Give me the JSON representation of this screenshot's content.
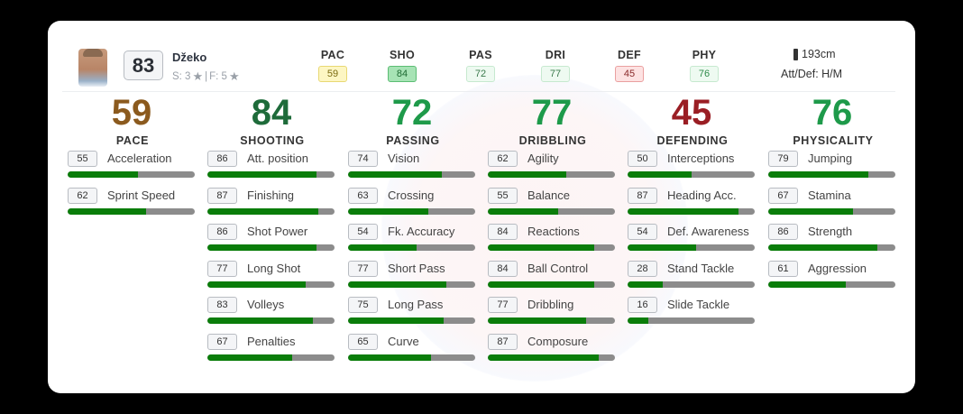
{
  "player": {
    "name": "Džeko",
    "overall": "83",
    "skill_moves_label": "S: 3",
    "weak_foot_label": "F: 5",
    "skills_separator": "|",
    "star_icon": "★",
    "height": "193cm",
    "work_rates": "Att/Def: H/M"
  },
  "summary": [
    {
      "label": "PAC",
      "value": "59",
      "bg": "#fdf6c3",
      "border": "#e8d873",
      "color": "#7a6a10"
    },
    {
      "label": "SHO",
      "value": "84",
      "bg": "#a7e3b5",
      "border": "#5bbd73",
      "color": "#1e6b33"
    },
    {
      "label": "PAS",
      "value": "72",
      "bg": "#eefaf1",
      "border": "#c6e9cf",
      "color": "#3a7a4c"
    },
    {
      "label": "DRI",
      "value": "77",
      "bg": "#eefaf1",
      "border": "#c6e9cf",
      "color": "#3a7a4c"
    },
    {
      "label": "DEF",
      "value": "45",
      "bg": "#fde2e2",
      "border": "#eaa0a0",
      "color": "#8a2a2a"
    },
    {
      "label": "PHY",
      "value": "76",
      "bg": "#eefaf1",
      "border": "#c6e9cf",
      "color": "#2e8a4a"
    }
  ],
  "categories": [
    {
      "value": "59",
      "label": "PACE",
      "color": "#8b5a1e",
      "attributes": [
        {
          "value": "55",
          "name": "Acceleration",
          "pct": 55
        },
        {
          "value": "62",
          "name": "Sprint Speed",
          "pct": 62
        }
      ]
    },
    {
      "value": "84",
      "label": "SHOOTING",
      "color": "#1e6b3a",
      "attributes": [
        {
          "value": "86",
          "name": "Att. position",
          "pct": 86
        },
        {
          "value": "87",
          "name": "Finishing",
          "pct": 87
        },
        {
          "value": "86",
          "name": "Shot Power",
          "pct": 86
        },
        {
          "value": "77",
          "name": "Long Shot",
          "pct": 77
        },
        {
          "value": "83",
          "name": "Volleys",
          "pct": 83
        },
        {
          "value": "67",
          "name": "Penalties",
          "pct": 67
        }
      ]
    },
    {
      "value": "72",
      "label": "PASSING",
      "color": "#1e9a4a",
      "attributes": [
        {
          "value": "74",
          "name": "Vision",
          "pct": 74
        },
        {
          "value": "63",
          "name": "Crossing",
          "pct": 63
        },
        {
          "value": "54",
          "name": "Fk. Accuracy",
          "pct": 54
        },
        {
          "value": "77",
          "name": "Short Pass",
          "pct": 77
        },
        {
          "value": "75",
          "name": "Long Pass",
          "pct": 75
        },
        {
          "value": "65",
          "name": "Curve",
          "pct": 65
        }
      ]
    },
    {
      "value": "77",
      "label": "DRIBBLING",
      "color": "#1e9a4a",
      "attributes": [
        {
          "value": "62",
          "name": "Agility",
          "pct": 62
        },
        {
          "value": "55",
          "name": "Balance",
          "pct": 55
        },
        {
          "value": "84",
          "name": "Reactions",
          "pct": 84
        },
        {
          "value": "84",
          "name": "Ball Control",
          "pct": 84
        },
        {
          "value": "77",
          "name": "Dribbling",
          "pct": 77
        },
        {
          "value": "87",
          "name": "Composure",
          "pct": 87
        }
      ]
    },
    {
      "value": "45",
      "label": "DEFENDING",
      "color": "#9a1e24",
      "attributes": [
        {
          "value": "50",
          "name": "Interceptions",
          "pct": 50
        },
        {
          "value": "87",
          "name": "Heading Acc.",
          "pct": 87
        },
        {
          "value": "54",
          "name": "Def. Awareness",
          "pct": 54
        },
        {
          "value": "28",
          "name": "Stand Tackle",
          "pct": 28
        },
        {
          "value": "16",
          "name": "Slide Tackle",
          "pct": 16
        }
      ]
    },
    {
      "value": "76",
      "label": "PHYSICALITY",
      "color": "#1e9a4a",
      "attributes": [
        {
          "value": "79",
          "name": "Jumping",
          "pct": 79
        },
        {
          "value": "67",
          "name": "Stamina",
          "pct": 67
        },
        {
          "value": "86",
          "name": "Strength",
          "pct": 86
        },
        {
          "value": "61",
          "name": "Aggression",
          "pct": 61
        }
      ]
    }
  ]
}
